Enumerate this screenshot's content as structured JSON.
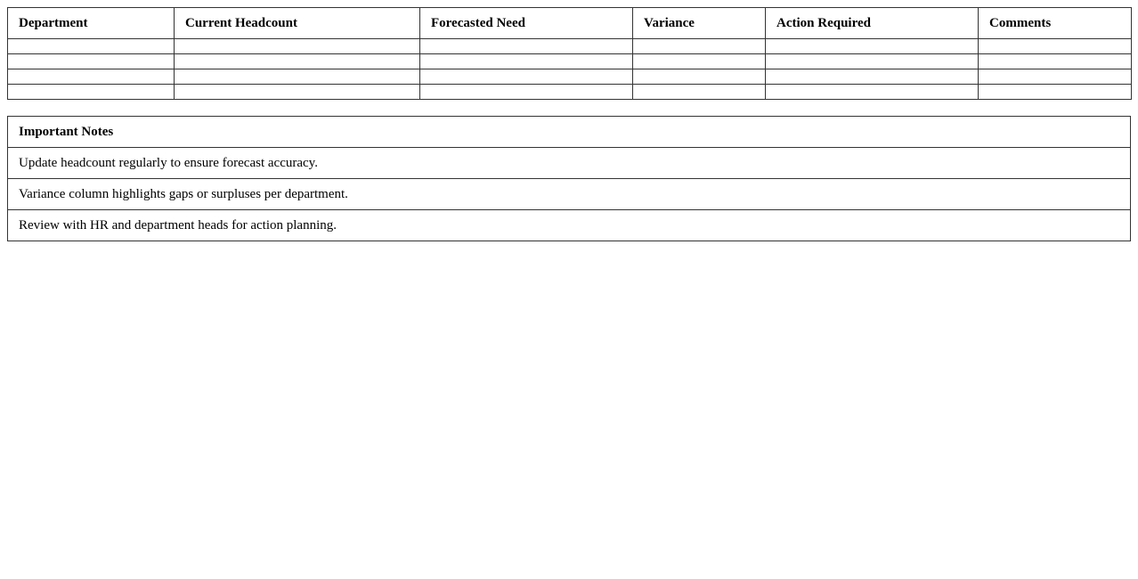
{
  "plan_table": {
    "headers": [
      "Department",
      "Current Headcount",
      "Forecasted Need",
      "Variance",
      "Action Required",
      "Comments"
    ],
    "rows": [
      [
        "",
        "",
        "",
        "",
        "",
        ""
      ],
      [
        "",
        "",
        "",
        "",
        "",
        ""
      ],
      [
        "",
        "",
        "",
        "",
        "",
        ""
      ],
      [
        "",
        "",
        "",
        "",
        "",
        ""
      ]
    ]
  },
  "notes": {
    "title": "Important Notes",
    "items": [
      "Update headcount regularly to ensure forecast accuracy.",
      "Variance column highlights gaps or surpluses per department.",
      "Review with HR and department heads for action planning."
    ]
  }
}
